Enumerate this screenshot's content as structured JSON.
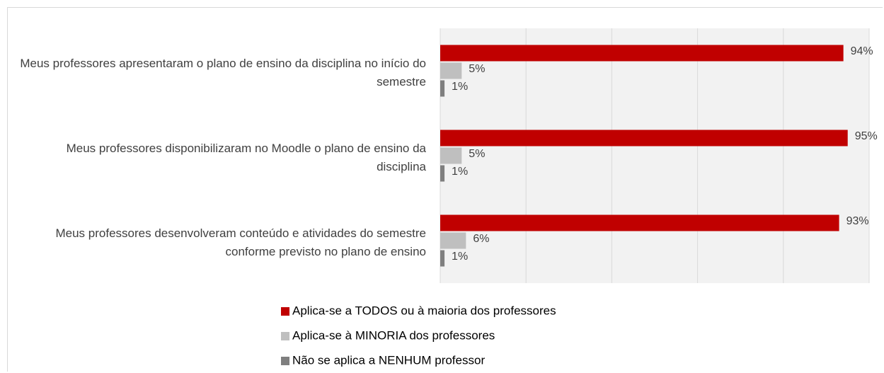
{
  "chart_data": {
    "type": "hbar",
    "categories": [
      "Meus professores apresentaram o plano de ensino da disciplina no início do semestre",
      "Meus professores disponibilizaram no Moodle o plano de ensino da disciplina",
      "Meus professores desenvolveram conteúdo e atividades do semestre conforme previsto no plano de ensino"
    ],
    "series": [
      {
        "name": "Aplica-se a TODOS ou à maioria dos professores",
        "color": "#c00000",
        "values": [
          94,
          95,
          93
        ],
        "value_labels": [
          "94%",
          "95%",
          "93%"
        ]
      },
      {
        "name": "Aplica-se à MINORIA dos professores",
        "color": "#bfbfbf",
        "values": [
          5,
          5,
          6
        ],
        "value_labels": [
          "5%",
          "5%",
          "6%"
        ]
      },
      {
        "name": "Não se aplica a NENHUM professor",
        "color": "#7f7f7f",
        "values": [
          1,
          1,
          1
        ],
        "value_labels": [
          "1%",
          "1%",
          "1%"
        ]
      }
    ],
    "xlim": [
      0,
      100
    ],
    "xticks": [
      0,
      20,
      40,
      60,
      80,
      100
    ],
    "grid": true,
    "legend": "bottom"
  }
}
